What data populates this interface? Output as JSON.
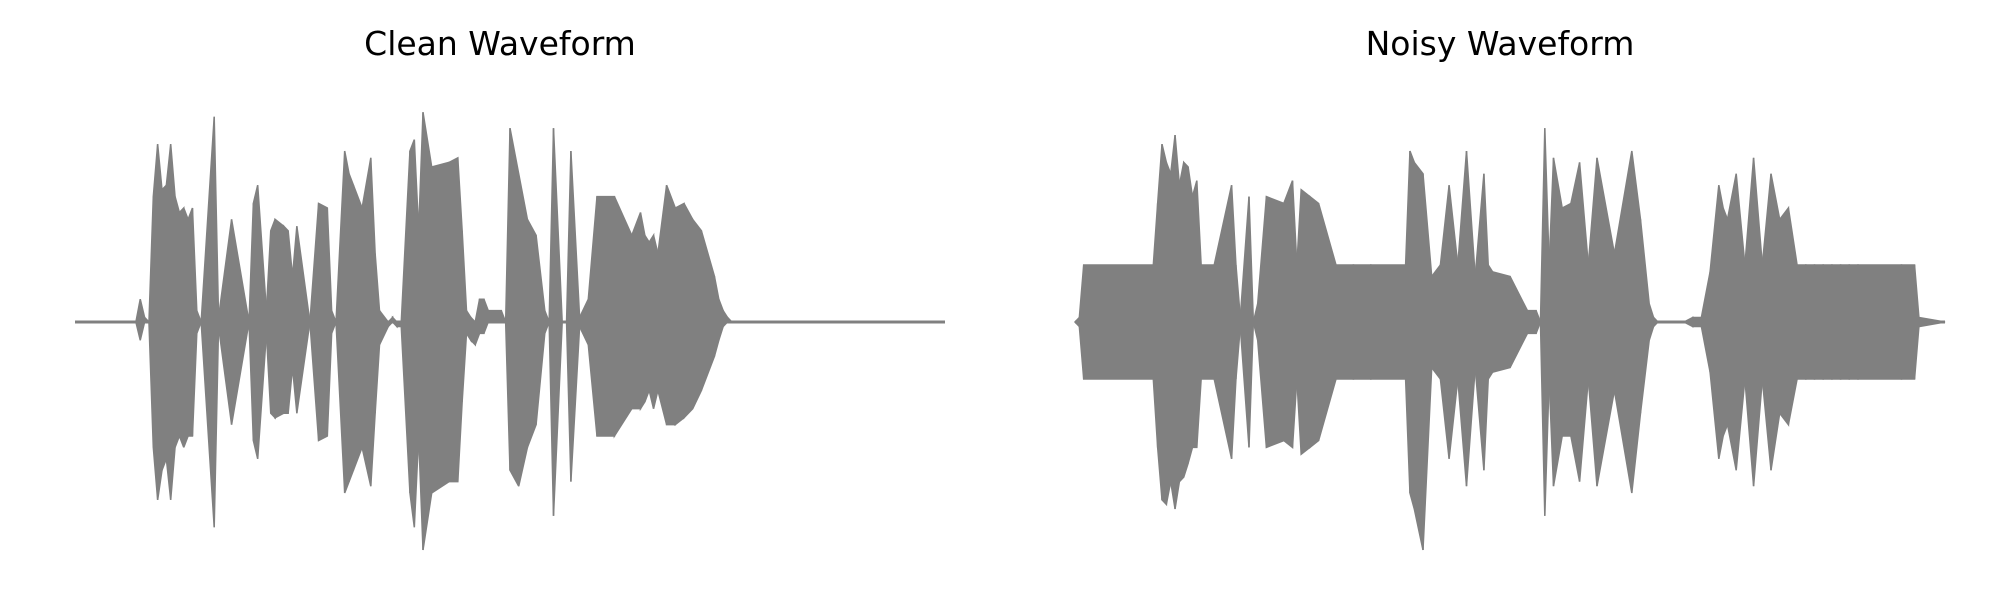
{
  "colors": {
    "waveform": "#808080",
    "background": "#ffffff",
    "text": "#000000"
  },
  "chart_data": [
    {
      "type": "area",
      "title": "Clean Waveform",
      "xlabel": "",
      "ylabel": "",
      "axes_visible": false,
      "grid": false,
      "xlim": [
        0,
        1
      ],
      "ylim": [
        -1,
        1
      ],
      "envelope": {
        "x": [
          0.0,
          0.07,
          0.075,
          0.08,
          0.085,
          0.09,
          0.095,
          0.1,
          0.105,
          0.11,
          0.115,
          0.12,
          0.125,
          0.13,
          0.135,
          0.14,
          0.145,
          0.16,
          0.165,
          0.18,
          0.2,
          0.205,
          0.21,
          0.22,
          0.225,
          0.23,
          0.24,
          0.245,
          0.25,
          0.255,
          0.27,
          0.28,
          0.29,
          0.295,
          0.3,
          0.31,
          0.315,
          0.32,
          0.33,
          0.34,
          0.345,
          0.35,
          0.36,
          0.365,
          0.37,
          0.375,
          0.385,
          0.39,
          0.395,
          0.4,
          0.41,
          0.43,
          0.44,
          0.445,
          0.45,
          0.455,
          0.46,
          0.465,
          0.47,
          0.475,
          0.49,
          0.495,
          0.5,
          0.51,
          0.52,
          0.53,
          0.54,
          0.545,
          0.55,
          0.56,
          0.565,
          0.57,
          0.58,
          0.59,
          0.6,
          0.62,
          0.64,
          0.65,
          0.655,
          0.66,
          0.665,
          0.67,
          0.68,
          0.69,
          0.7,
          0.71,
          0.72,
          0.735,
          0.74,
          0.745,
          0.75,
          0.755,
          0.76,
          0.765,
          0.77,
          0.78,
          0.79,
          0.8,
          0.81,
          0.83,
          1.0
        ],
        "upper": [
          0.0,
          0.0,
          0.1,
          0.02,
          0.0,
          0.55,
          0.78,
          0.58,
          0.6,
          0.78,
          0.55,
          0.48,
          0.5,
          0.45,
          0.5,
          0.05,
          0.0,
          0.9,
          0.02,
          0.45,
          0.0,
          0.52,
          0.6,
          0.05,
          0.4,
          0.45,
          0.42,
          0.4,
          0.2,
          0.42,
          0.0,
          0.52,
          0.5,
          0.05,
          0.0,
          0.75,
          0.65,
          0.6,
          0.5,
          0.72,
          0.3,
          0.05,
          0.0,
          0.02,
          0.0,
          0.0,
          0.75,
          0.8,
          0.4,
          0.92,
          0.68,
          0.7,
          0.72,
          0.4,
          0.05,
          0.02,
          0.0,
          0.1,
          0.1,
          0.05,
          0.05,
          0.0,
          0.85,
          0.65,
          0.45,
          0.38,
          0.05,
          0.0,
          0.85,
          0.0,
          0.0,
          0.75,
          0.02,
          0.1,
          0.55,
          0.55,
          0.38,
          0.48,
          0.38,
          0.35,
          0.38,
          0.3,
          0.6,
          0.5,
          0.52,
          0.45,
          0.4,
          0.2,
          0.1,
          0.05,
          0.02,
          0.0,
          0.0,
          0.0,
          0.0,
          0.0,
          0.0,
          0.0,
          0.0,
          0.0,
          0.0
        ],
        "lower": [
          0.0,
          0.0,
          -0.08,
          0.0,
          0.0,
          -0.55,
          -0.78,
          -0.65,
          -0.6,
          -0.78,
          -0.55,
          -0.5,
          -0.55,
          -0.5,
          -0.5,
          -0.05,
          0.0,
          -0.9,
          -0.02,
          -0.45,
          0.0,
          -0.52,
          -0.6,
          -0.05,
          -0.4,
          -0.42,
          -0.4,
          -0.4,
          -0.2,
          -0.4,
          0.0,
          -0.52,
          -0.5,
          -0.05,
          0.0,
          -0.75,
          -0.7,
          -0.65,
          -0.55,
          -0.72,
          -0.4,
          -0.1,
          -0.02,
          0.0,
          -0.02,
          -0.02,
          -0.75,
          -0.9,
          -0.5,
          -1.0,
          -0.75,
          -0.7,
          -0.7,
          -0.35,
          -0.05,
          -0.08,
          -0.1,
          -0.05,
          -0.05,
          0.0,
          0.0,
          0.0,
          -0.65,
          -0.72,
          -0.55,
          -0.45,
          -0.05,
          0.0,
          -0.85,
          0.0,
          0.0,
          -0.7,
          -0.02,
          -0.1,
          -0.5,
          -0.5,
          -0.38,
          -0.38,
          -0.35,
          -0.3,
          -0.38,
          -0.3,
          -0.45,
          -0.45,
          -0.42,
          -0.38,
          -0.3,
          -0.15,
          -0.08,
          -0.02,
          0.0,
          0.0,
          0.0,
          0.0,
          0.0,
          0.0,
          0.0,
          0.0,
          0.0,
          0.0,
          0.0
        ]
      }
    },
    {
      "type": "area",
      "title": "Noisy Waveform",
      "xlabel": "",
      "ylabel": "",
      "axes_visible": false,
      "grid": false,
      "xlim": [
        0,
        1
      ],
      "ylim": [
        -1,
        1
      ],
      "envelope": {
        "x": [
          0.0,
          0.005,
          0.01,
          0.09,
          0.095,
          0.1,
          0.105,
          0.11,
          0.115,
          0.12,
          0.125,
          0.13,
          0.135,
          0.14,
          0.145,
          0.16,
          0.18,
          0.185,
          0.19,
          0.2,
          0.205,
          0.21,
          0.22,
          0.24,
          0.25,
          0.255,
          0.26,
          0.27,
          0.28,
          0.3,
          0.32,
          0.34,
          0.38,
          0.385,
          0.39,
          0.4,
          0.41,
          0.42,
          0.43,
          0.44,
          0.45,
          0.46,
          0.47,
          0.475,
          0.48,
          0.5,
          0.52,
          0.53,
          0.535,
          0.54,
          0.545,
          0.55,
          0.56,
          0.57,
          0.58,
          0.59,
          0.6,
          0.62,
          0.64,
          0.65,
          0.66,
          0.665,
          0.67,
          0.68,
          0.69,
          0.7,
          0.71,
          0.72,
          0.73,
          0.74,
          0.745,
          0.75,
          0.76,
          0.77,
          0.78,
          0.79,
          0.8,
          0.81,
          0.82,
          0.83,
          0.84,
          0.85,
          0.86,
          0.87,
          0.88,
          0.89,
          0.9,
          0.95,
          0.965,
          0.97,
          1.0
        ],
        "upper": [
          0.0,
          0.02,
          0.25,
          0.25,
          0.52,
          0.78,
          0.7,
          0.65,
          0.82,
          0.6,
          0.7,
          0.68,
          0.55,
          0.62,
          0.25,
          0.25,
          0.6,
          0.25,
          0.02,
          0.55,
          0.0,
          0.08,
          0.55,
          0.52,
          0.62,
          0.25,
          0.58,
          0.55,
          0.52,
          0.25,
          0.25,
          0.25,
          0.25,
          0.75,
          0.7,
          0.65,
          0.2,
          0.25,
          0.6,
          0.25,
          0.75,
          0.2,
          0.65,
          0.25,
          0.22,
          0.2,
          0.05,
          0.05,
          0.0,
          0.85,
          0.25,
          0.72,
          0.5,
          0.52,
          0.7,
          0.25,
          0.72,
          0.3,
          0.75,
          0.45,
          0.08,
          0.02,
          0.0,
          0.0,
          0.0,
          0.0,
          0.02,
          0.02,
          0.22,
          0.6,
          0.5,
          0.45,
          0.65,
          0.25,
          0.72,
          0.25,
          0.65,
          0.45,
          0.5,
          0.25,
          0.25,
          0.25,
          0.25,
          0.25,
          0.25,
          0.25,
          0.25,
          0.25,
          0.25,
          0.02,
          0.0
        ],
        "lower": [
          0.0,
          -0.02,
          -0.25,
          -0.25,
          -0.55,
          -0.78,
          -0.8,
          -0.7,
          -0.82,
          -0.7,
          -0.68,
          -0.62,
          -0.55,
          -0.55,
          -0.25,
          -0.25,
          -0.6,
          -0.25,
          -0.02,
          -0.55,
          0.0,
          -0.08,
          -0.55,
          -0.52,
          -0.55,
          -0.25,
          -0.58,
          -0.55,
          -0.52,
          -0.25,
          -0.25,
          -0.25,
          -0.25,
          -0.75,
          -0.82,
          -1.0,
          -0.2,
          -0.25,
          -0.6,
          -0.25,
          -0.72,
          -0.2,
          -0.65,
          -0.25,
          -0.22,
          -0.2,
          -0.05,
          -0.05,
          0.0,
          -0.85,
          -0.25,
          -0.72,
          -0.5,
          -0.5,
          -0.7,
          -0.25,
          -0.72,
          -0.3,
          -0.75,
          -0.4,
          -0.08,
          -0.02,
          0.0,
          0.0,
          0.0,
          0.0,
          -0.02,
          -0.02,
          -0.22,
          -0.6,
          -0.5,
          -0.45,
          -0.65,
          -0.25,
          -0.72,
          -0.25,
          -0.65,
          -0.4,
          -0.45,
          -0.25,
          -0.25,
          -0.25,
          -0.25,
          -0.25,
          -0.25,
          -0.25,
          -0.25,
          -0.25,
          -0.25,
          -0.02,
          0.0
        ]
      }
    }
  ]
}
